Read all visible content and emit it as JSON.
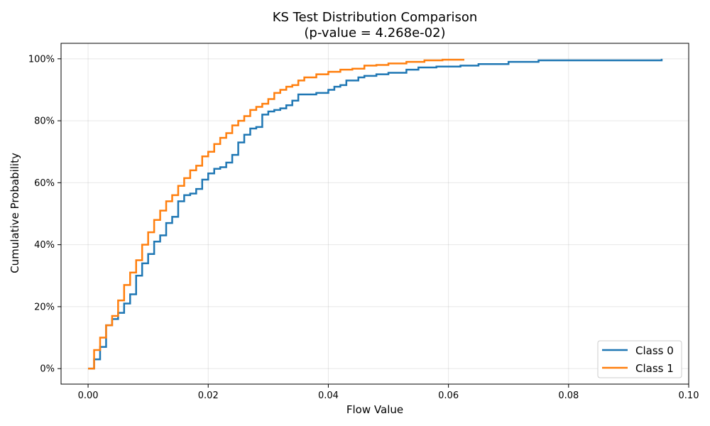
{
  "chart_data": {
    "type": "line",
    "title": "KS Test Distribution Comparison",
    "subtitle": "(p-value = 4.268e-02)",
    "xlabel": "Flow Value",
    "ylabel": "Cumulative Probability",
    "xlim": [
      -0.0045,
      0.1
    ],
    "ylim": [
      -0.05,
      1.05
    ],
    "xticks": [
      0.0,
      0.02,
      0.04,
      0.06,
      0.08,
      0.1
    ],
    "xtick_labels": [
      "0.00",
      "0.02",
      "0.04",
      "0.06",
      "0.08",
      "0.10"
    ],
    "yticks": [
      0,
      0.2,
      0.4,
      0.6,
      0.8,
      1.0
    ],
    "ytick_labels": [
      "0%",
      "20%",
      "40%",
      "60%",
      "80%",
      "100%"
    ],
    "grid": true,
    "legend_position": "bottom-right",
    "series": [
      {
        "name": "Class 0",
        "color": "#1f77b4",
        "x": [
          0.0,
          0.001,
          0.002,
          0.003,
          0.004,
          0.005,
          0.006,
          0.007,
          0.008,
          0.009,
          0.01,
          0.011,
          0.012,
          0.013,
          0.014,
          0.015,
          0.016,
          0.017,
          0.018,
          0.019,
          0.02,
          0.021,
          0.022,
          0.023,
          0.024,
          0.025,
          0.026,
          0.027,
          0.028,
          0.029,
          0.03,
          0.031,
          0.032,
          0.033,
          0.034,
          0.035,
          0.036,
          0.038,
          0.04,
          0.041,
          0.042,
          0.043,
          0.045,
          0.046,
          0.048,
          0.05,
          0.053,
          0.055,
          0.058,
          0.062,
          0.065,
          0.07,
          0.075,
          0.095,
          0.0955
        ],
        "y": [
          0.0,
          0.03,
          0.07,
          0.14,
          0.16,
          0.18,
          0.21,
          0.24,
          0.3,
          0.34,
          0.37,
          0.41,
          0.43,
          0.47,
          0.49,
          0.54,
          0.56,
          0.565,
          0.58,
          0.61,
          0.63,
          0.645,
          0.65,
          0.665,
          0.69,
          0.73,
          0.755,
          0.775,
          0.78,
          0.82,
          0.83,
          0.835,
          0.84,
          0.85,
          0.865,
          0.885,
          0.885,
          0.89,
          0.9,
          0.91,
          0.915,
          0.93,
          0.94,
          0.945,
          0.95,
          0.955,
          0.965,
          0.972,
          0.975,
          0.978,
          0.983,
          0.99,
          0.995,
          0.995,
          1.0
        ]
      },
      {
        "name": "Class 1",
        "color": "#ff7f0e",
        "x": [
          0.0,
          0.001,
          0.002,
          0.003,
          0.004,
          0.005,
          0.006,
          0.007,
          0.008,
          0.009,
          0.01,
          0.011,
          0.012,
          0.013,
          0.014,
          0.015,
          0.016,
          0.017,
          0.018,
          0.019,
          0.02,
          0.021,
          0.022,
          0.023,
          0.024,
          0.025,
          0.026,
          0.027,
          0.028,
          0.029,
          0.03,
          0.031,
          0.032,
          0.033,
          0.034,
          0.035,
          0.036,
          0.038,
          0.04,
          0.042,
          0.044,
          0.046,
          0.048,
          0.05,
          0.053,
          0.056,
          0.059,
          0.0625
        ],
        "y": [
          0.0,
          0.06,
          0.1,
          0.14,
          0.17,
          0.22,
          0.27,
          0.31,
          0.35,
          0.4,
          0.44,
          0.48,
          0.51,
          0.54,
          0.56,
          0.59,
          0.615,
          0.64,
          0.655,
          0.685,
          0.7,
          0.725,
          0.745,
          0.76,
          0.785,
          0.8,
          0.815,
          0.835,
          0.845,
          0.855,
          0.87,
          0.89,
          0.9,
          0.91,
          0.915,
          0.93,
          0.94,
          0.95,
          0.958,
          0.965,
          0.968,
          0.978,
          0.98,
          0.985,
          0.99,
          0.995,
          0.997,
          1.0
        ]
      }
    ]
  }
}
